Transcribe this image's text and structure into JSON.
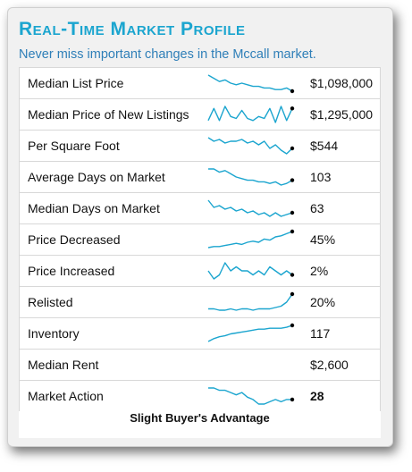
{
  "header": {
    "title": "Real-Time Market Profile",
    "subtitle": "Never miss important changes in the Mccall market."
  },
  "rows": [
    {
      "label": "Median List Price",
      "value": "$1,098,000",
      "trend": [
        60,
        58,
        56,
        57,
        55,
        54,
        55,
        54,
        53,
        53,
        52,
        52,
        51,
        51,
        52,
        50
      ],
      "line_color": "#1ba5cf"
    },
    {
      "label": "Median Price of New Listings",
      "value": "$1,295,000",
      "trend": [
        50,
        56,
        50,
        57,
        52,
        51,
        55,
        51,
        50,
        52,
        51,
        56,
        49,
        57,
        50,
        56
      ],
      "line_color": "#1ba5cf"
    },
    {
      "label": "Per Square Foot",
      "value": "$544",
      "trend": [
        58,
        56,
        57,
        55,
        56,
        56,
        57,
        55,
        56,
        54,
        56,
        52,
        54,
        51,
        49,
        52
      ],
      "line_color": "#1ba5cf"
    },
    {
      "label": "Average Days on Market",
      "value": "103",
      "trend": [
        110,
        110,
        108,
        109,
        107,
        105,
        104,
        103,
        103,
        102,
        102,
        101,
        102,
        100,
        101,
        103
      ],
      "line_color": "#1ba5cf"
    },
    {
      "label": "Median Days on Market",
      "value": "63",
      "trend": [
        70,
        66,
        67,
        65,
        66,
        64,
        65,
        63,
        64,
        62,
        63,
        61,
        63,
        61,
        62,
        63
      ],
      "line_color": "#1ba5cf"
    },
    {
      "label": "Price Decreased",
      "value": "45%",
      "trend": [
        30,
        31,
        31,
        32,
        33,
        34,
        33,
        35,
        36,
        35,
        38,
        37,
        40,
        41,
        43,
        45
      ],
      "line_color": "#1ba5cf"
    },
    {
      "label": "Price Increased",
      "value": "2%",
      "trend": [
        3,
        1,
        2,
        5,
        3,
        4,
        3,
        3,
        2,
        3,
        2,
        4,
        3,
        2,
        3,
        2
      ],
      "line_color": "#1ba5cf"
    },
    {
      "label": "Relisted",
      "value": "20%",
      "trend": [
        9,
        9,
        8,
        8,
        9,
        8,
        9,
        9,
        8,
        9,
        9,
        9,
        10,
        11,
        14,
        20
      ],
      "line_color": "#1ba5cf"
    },
    {
      "label": "Inventory",
      "value": "117",
      "trend": [
        100,
        103,
        105,
        106,
        108,
        109,
        110,
        111,
        112,
        113,
        113,
        114,
        114,
        114,
        115,
        117
      ],
      "line_color": "#1ba5cf"
    },
    {
      "label": "Median Rent",
      "value": "$2,600",
      "trend": [],
      "line_color": "#1ba5cf"
    },
    {
      "label": "Market Action",
      "value": "28",
      "trend": [
        33,
        33,
        32,
        32,
        31,
        30,
        31,
        29,
        28,
        26,
        26,
        27,
        28,
        27,
        28,
        28
      ],
      "line_color": "#1ba5cf",
      "value_bold": true
    }
  ],
  "footer": {
    "market_condition": "Slight Buyer's Advantage"
  }
}
